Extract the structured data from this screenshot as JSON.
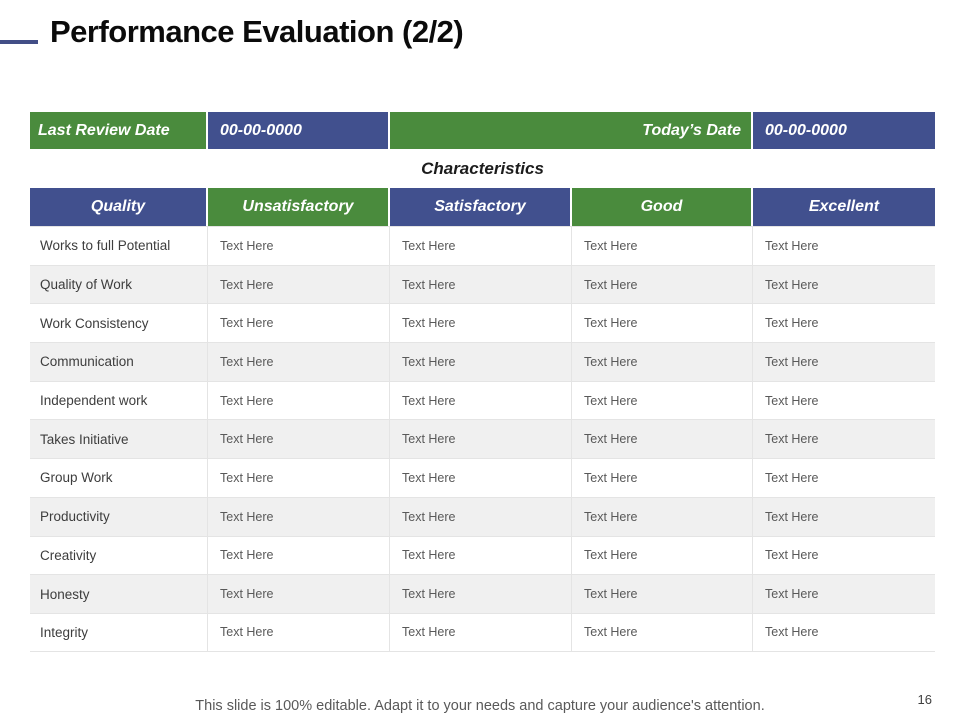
{
  "slide": {
    "title": "Performance Evaluation (2/2)",
    "footer": "This slide is 100% editable. Adapt it to your needs and capture your audience's attention.",
    "page_number": "16"
  },
  "colors": {
    "green": "#4a8b3d",
    "blue": "#41508e",
    "accent_dash": "#424e86",
    "row_alt": "#f0f0f0"
  },
  "info_bar": {
    "last_review_label": "Last Review Date",
    "last_review_value": "00-00-0000",
    "todays_label": "Today’s Date",
    "todays_value": "00-00-0000"
  },
  "table": {
    "section_title": "Characteristics",
    "columns": [
      "Quality",
      "Unsatisfactory",
      "Satisfactory",
      "Good",
      "Excellent"
    ],
    "header_colors": [
      "blue",
      "green",
      "blue",
      "green",
      "blue"
    ],
    "placeholder": "Text Here",
    "rows": [
      {
        "label": "Works to full Potential",
        "values": [
          "Text Here",
          "Text Here",
          "Text Here",
          "Text Here"
        ]
      },
      {
        "label": "Quality of Work",
        "values": [
          "Text Here",
          "Text Here",
          "Text Here",
          "Text Here"
        ]
      },
      {
        "label": "Work Consistency",
        "values": [
          "Text Here",
          "Text Here",
          "Text Here",
          "Text Here"
        ]
      },
      {
        "label": "Communication",
        "values": [
          "Text Here",
          "Text Here",
          "Text Here",
          "Text Here"
        ]
      },
      {
        "label": "Independent work",
        "values": [
          "Text Here",
          "Text Here",
          "Text Here",
          "Text Here"
        ]
      },
      {
        "label": "Takes Initiative",
        "values": [
          "Text Here",
          "Text Here",
          "Text Here",
          "Text Here"
        ]
      },
      {
        "label": "Group Work",
        "values": [
          "Text Here",
          "Text Here",
          "Text Here",
          "Text Here"
        ]
      },
      {
        "label": "Productivity",
        "values": [
          "Text Here",
          "Text Here",
          "Text Here",
          "Text Here"
        ]
      },
      {
        "label": "Creativity",
        "values": [
          "Text Here",
          "Text Here",
          "Text Here",
          "Text Here"
        ]
      },
      {
        "label": "Honesty",
        "values": [
          "Text Here",
          "Text Here",
          "Text Here",
          "Text Here"
        ]
      },
      {
        "label": "Integrity",
        "values": [
          "Text Here",
          "Text Here",
          "Text Here",
          "Text Here"
        ]
      }
    ]
  }
}
